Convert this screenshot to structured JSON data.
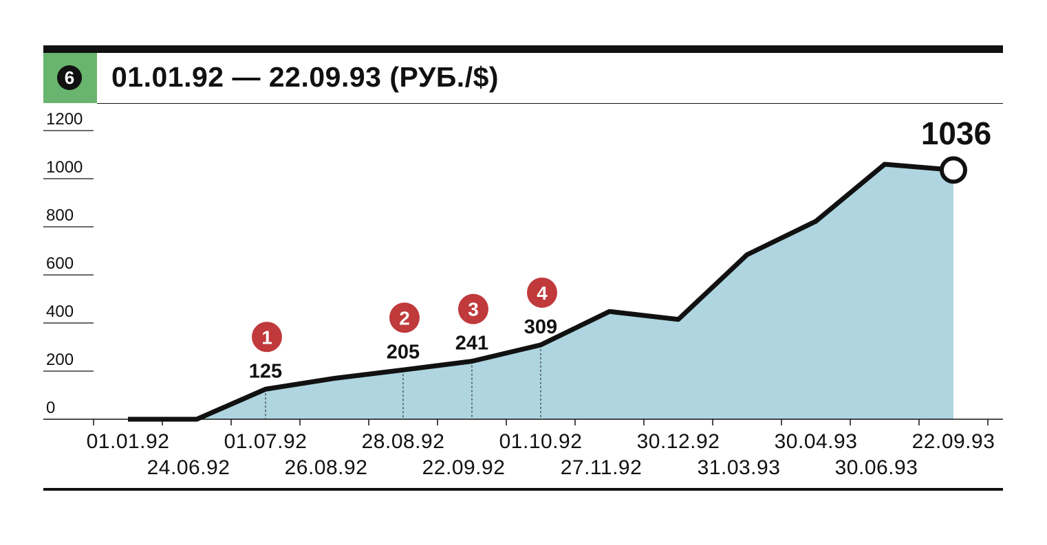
{
  "header": {
    "badge": "6",
    "title": "01.01.92 — 22.09.93 (РУБ./$)"
  },
  "colors": {
    "badge_bg": "#69b46e",
    "area_fill": "#aed5e0",
    "line": "#111111",
    "marker": "#c0393b"
  },
  "chart_data": {
    "type": "area",
    "title": "01.01.92 — 22.09.93 (РУБ./$)",
    "xlabel": "",
    "ylabel": "",
    "ylim": [
      0,
      1200
    ],
    "yticks": [
      0,
      200,
      400,
      600,
      800,
      1000,
      1200
    ],
    "grid": false,
    "x_tick_labels_top": [
      "01.01.92",
      "01.07.92",
      "28.08.92",
      "01.10.92",
      "30.12.92",
      "30.04.93",
      "22.09.93"
    ],
    "x_tick_labels_bottom": [
      "24.06.92",
      "26.08.92",
      "22.09.92",
      "27.11.92",
      "31.03.93",
      "30.06.93"
    ],
    "series": [
      {
        "values": [
          0,
          0,
          125,
          170,
          205,
          241,
          309,
          448,
          415,
          684,
          823,
          1060,
          1036
        ]
      }
    ],
    "labeled_points": [
      {
        "index": 2,
        "value": "125",
        "marker": "1"
      },
      {
        "index": 4,
        "value": "205",
        "marker": "2"
      },
      {
        "index": 5,
        "value": "241",
        "marker": "3"
      },
      {
        "index": 6,
        "value": "309",
        "marker": "4"
      }
    ],
    "end_label": "1036"
  }
}
